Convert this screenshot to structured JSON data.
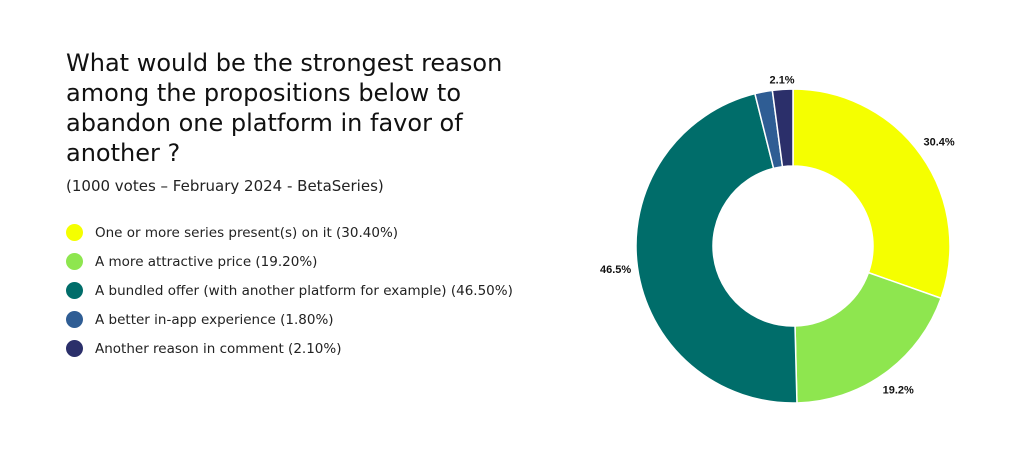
{
  "chart_data": {
    "type": "pie",
    "donut": true,
    "title": "What would be the strongest reason among the propositions below to abandon one platform in favor of another ?",
    "subtitle": "(1000 votes – February 2024 - BetaSeries)",
    "legend_position": "left",
    "categories": [
      "One or more series present(s) on it",
      "A more attractive price",
      "A bundled offer (with another platform for example)",
      "A better in-app experience",
      "Another reason in comment"
    ],
    "values": [
      30.4,
      19.2,
      46.5,
      1.8,
      2.1
    ],
    "legend_labels": [
      "One or more series present(s) on it (30.40%)",
      "A more attractive price (19.20%)",
      "A bundled offer (with another platform for example) (46.50%)",
      "A better in-app experience (1.80%)",
      "Another reason in comment (2.10%)"
    ],
    "data_labels": [
      "30.4%",
      "19.2%",
      "46.5%",
      "",
      "2.1%"
    ],
    "colors": [
      "#f5ff00",
      "#8ee64f",
      "#006d6a",
      "#2f5d94",
      "#2b2f6a"
    ]
  }
}
